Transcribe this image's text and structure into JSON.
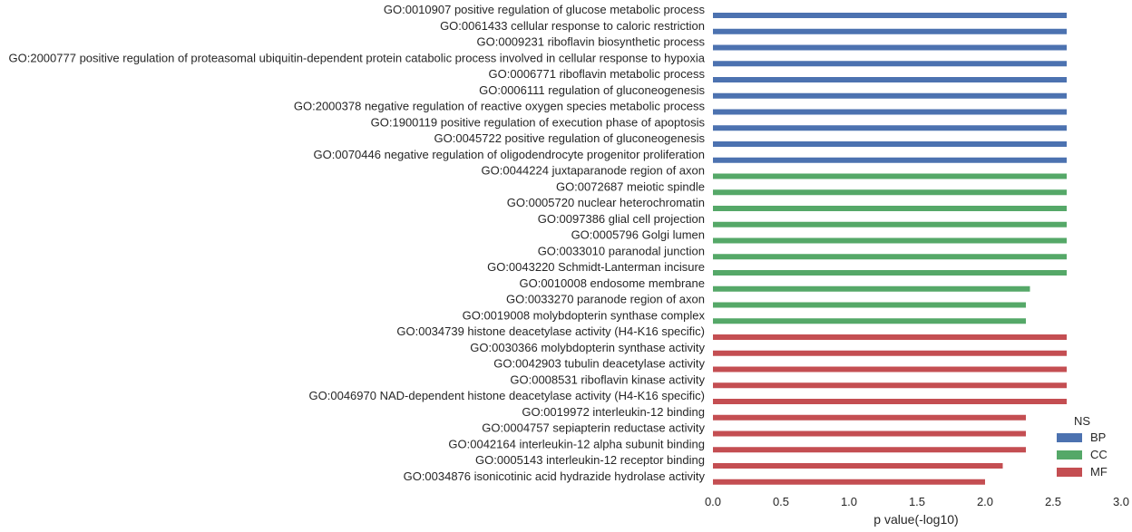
{
  "chart_data": {
    "type": "bar",
    "orientation": "horizontal",
    "xlabel": "p value(-log10)",
    "xlim": [
      0,
      3.0
    ],
    "xticks": [
      "0.0",
      "0.5",
      "1.0",
      "1.5",
      "2.0",
      "2.5",
      "3.0"
    ],
    "grid": false,
    "legend": {
      "title": "NS",
      "placement": "bottom-right",
      "entries": [
        {
          "name": "BP",
          "color": "#4c72b0"
        },
        {
          "name": "CC",
          "color": "#55a868"
        },
        {
          "name": "MF",
          "color": "#c44e52"
        }
      ]
    },
    "categories": [
      "GO:0010907 positive regulation of glucose metabolic process",
      "GO:0061433 cellular response to caloric restriction",
      "GO:0009231 riboflavin biosynthetic process",
      "GO:2000777 positive regulation of proteasomal ubiquitin-dependent protein catabolic process involved in cellular response to hypoxia",
      "GO:0006771 riboflavin metabolic process",
      "GO:0006111 regulation of gluconeogenesis",
      "GO:2000378 negative regulation of reactive oxygen species metabolic process",
      "GO:1900119 positive regulation of execution phase of apoptosis",
      "GO:0045722 positive regulation of gluconeogenesis",
      "GO:0070446 negative regulation of oligodendrocyte progenitor proliferation",
      "GO:0044224 juxtaparanode region of axon",
      "GO:0072687 meiotic spindle",
      "GO:0005720 nuclear heterochromatin",
      "GO:0097386 glial cell projection",
      "GO:0005796 Golgi lumen",
      "GO:0033010 paranodal junction",
      "GO:0043220 Schmidt-Lanterman incisure",
      "GO:0010008 endosome membrane",
      "GO:0033270 paranode region of axon",
      "GO:0019008 molybdopterin synthase complex",
      "GO:0034739 histone deacetylase activity (H4-K16 specific)",
      "GO:0030366 molybdopterin synthase activity",
      "GO:0042903 tubulin deacetylase activity",
      "GO:0008531 riboflavin kinase activity",
      "GO:0046970 NAD-dependent histone deacetylase activity (H4-K16 specific)",
      "GO:0019972 interleukin-12 binding",
      "GO:0004757 sepiapterin reductase activity",
      "GO:0042164 interleukin-12 alpha subunit binding",
      "GO:0005143 interleukin-12 receptor binding",
      "GO:0034876 isonicotinic acid hydrazide hydrolase activity"
    ],
    "ns": [
      "BP",
      "BP",
      "BP",
      "BP",
      "BP",
      "BP",
      "BP",
      "BP",
      "BP",
      "BP",
      "CC",
      "CC",
      "CC",
      "CC",
      "CC",
      "CC",
      "CC",
      "CC",
      "CC",
      "CC",
      "MF",
      "MF",
      "MF",
      "MF",
      "MF",
      "MF",
      "MF",
      "MF",
      "MF",
      "MF"
    ],
    "values": [
      2.6,
      2.6,
      2.6,
      2.6,
      2.6,
      2.6,
      2.6,
      2.6,
      2.6,
      2.6,
      2.6,
      2.6,
      2.6,
      2.6,
      2.6,
      2.6,
      2.6,
      2.33,
      2.3,
      2.3,
      2.6,
      2.6,
      2.6,
      2.6,
      2.6,
      2.3,
      2.3,
      2.3,
      2.13,
      2.0
    ]
  }
}
